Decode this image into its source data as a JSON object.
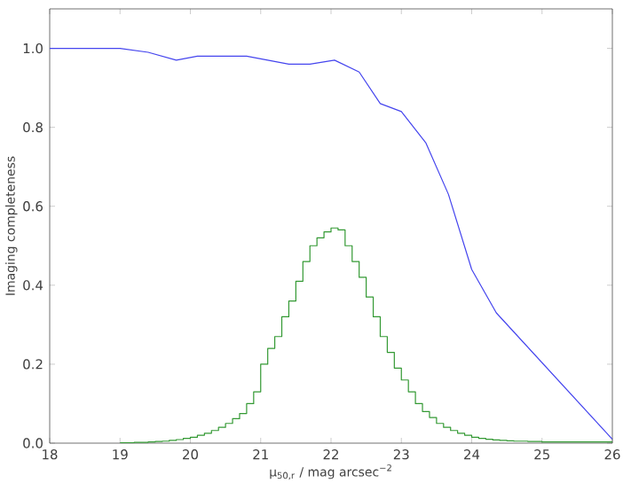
{
  "chart_data": {
    "type": "line",
    "xlabel": "μ$_{50,r}$ / mag arcsec$^{−2}$",
    "ylabel": "Imaging completeness",
    "xlim": [
      18,
      26
    ],
    "ylim": [
      0,
      1.1
    ],
    "xticks": [
      18,
      19,
      20,
      21,
      22,
      23,
      24,
      25,
      26
    ],
    "yticks": [
      {
        "value": 0,
        "label": "0.0"
      },
      {
        "value": 0.2,
        "label": "0.2"
      },
      {
        "value": 0.4,
        "label": "0.4"
      },
      {
        "value": 0.6,
        "label": "0.6"
      },
      {
        "value": 0.8,
        "label": "0.8"
      },
      {
        "value": 1.0,
        "label": "1.0"
      }
    ],
    "grid": false,
    "series": [
      {
        "color": "#4444ee",
        "x": [
          18,
          19,
          19.4,
          19.8,
          20.1,
          20.8,
          21.4,
          21.7,
          22.05,
          22.4,
          22.7,
          23.0,
          23.35,
          23.67,
          24.0,
          24.35,
          26.0
        ],
        "values": [
          1.0,
          1.0,
          0.99,
          0.97,
          0.98,
          0.98,
          0.96,
          0.96,
          0.97,
          0.94,
          0.86,
          0.84,
          0.76,
          0.63,
          0.44,
          0.33,
          0.01
        ]
      },
      {
        "type": "histogram",
        "color": "#339933",
        "bins": [
          19.0,
          19.1,
          19.2,
          19.3,
          19.4,
          19.5,
          19.6,
          19.7,
          19.8,
          19.9,
          20.0,
          20.1,
          20.2,
          20.3,
          20.4,
          20.5,
          20.6,
          20.7,
          20.8,
          20.9,
          21.0,
          21.1,
          21.2,
          21.3,
          21.4,
          21.5,
          21.6,
          21.7,
          21.8,
          21.9,
          22.0,
          22.1,
          22.2,
          22.3,
          22.4,
          22.5,
          22.6,
          22.7,
          22.8,
          22.9,
          23.0,
          23.1,
          23.2,
          23.3,
          23.4,
          23.5,
          23.6,
          23.7,
          23.8,
          23.9,
          24.0,
          24.1,
          24.2,
          24.3,
          24.4,
          24.5,
          24.6,
          24.7,
          24.8,
          24.9,
          25.0,
          25.1,
          25.2,
          25.3,
          25.4,
          25.5,
          25.6,
          25.7,
          25.8,
          25.9,
          26.0
        ],
        "values": [
          0.001,
          0.001,
          0.002,
          0.002,
          0.003,
          0.004,
          0.005,
          0.007,
          0.009,
          0.012,
          0.015,
          0.02,
          0.025,
          0.032,
          0.04,
          0.05,
          0.062,
          0.075,
          0.1,
          0.13,
          0.2,
          0.24,
          0.27,
          0.32,
          0.36,
          0.41,
          0.46,
          0.5,
          0.52,
          0.535,
          0.545,
          0.54,
          0.5,
          0.46,
          0.42,
          0.37,
          0.32,
          0.27,
          0.23,
          0.19,
          0.16,
          0.13,
          0.1,
          0.08,
          0.065,
          0.05,
          0.04,
          0.032,
          0.025,
          0.02,
          0.015,
          0.012,
          0.01,
          0.008,
          0.007,
          0.006,
          0.005,
          0.005,
          0.004,
          0.004,
          0.003,
          0.003,
          0.003,
          0.003,
          0.003,
          0.003,
          0.003,
          0.003,
          0.003,
          0.003
        ]
      }
    ]
  }
}
